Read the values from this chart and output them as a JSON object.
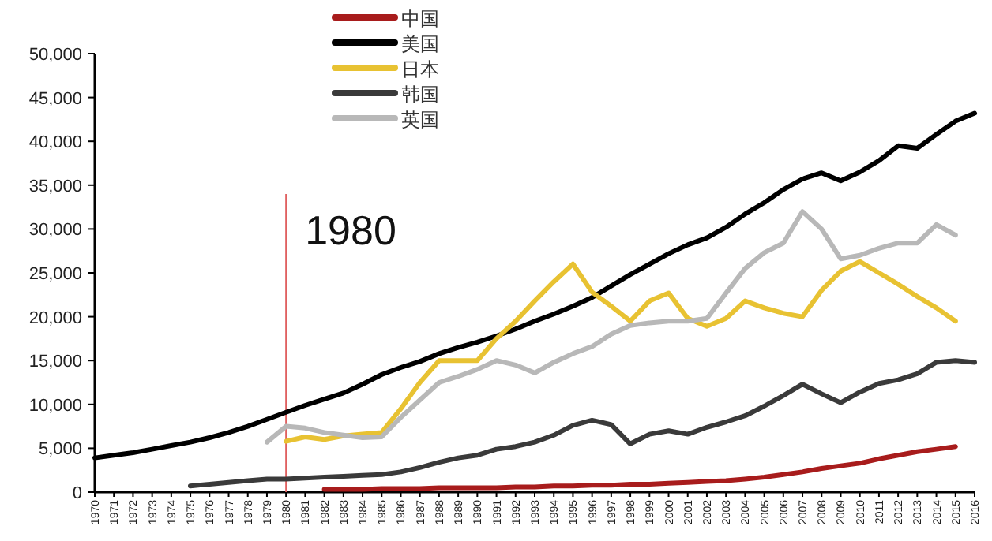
{
  "chart_data": {
    "type": "line",
    "x": [
      1970,
      1971,
      1972,
      1973,
      1974,
      1975,
      1976,
      1977,
      1978,
      1979,
      1980,
      1981,
      1982,
      1983,
      1984,
      1985,
      1986,
      1987,
      1988,
      1989,
      1990,
      1991,
      1992,
      1993,
      1994,
      1995,
      1996,
      1997,
      1998,
      1999,
      2000,
      2001,
      2002,
      2003,
      2004,
      2005,
      2006,
      2007,
      2008,
      2009,
      2010,
      2011,
      2012,
      2013,
      2014,
      2015,
      2016
    ],
    "series": [
      {
        "name": "中国",
        "color": "#a81c1c",
        "values": [
          null,
          null,
          null,
          null,
          null,
          null,
          null,
          null,
          null,
          null,
          null,
          null,
          300,
          300,
          300,
          400,
          400,
          400,
          500,
          500,
          500,
          500,
          600,
          600,
          700,
          700,
          800,
          800,
          900,
          900,
          1000,
          1100,
          1200,
          1300,
          1500,
          1700,
          2000,
          2300,
          2700,
          3000,
          3300,
          3800,
          4200,
          4600,
          4900,
          5200,
          null
        ]
      },
      {
        "name": "美国",
        "color": "#000000",
        "values": [
          3900,
          4200,
          4500,
          4900,
          5300,
          5700,
          6200,
          6800,
          7500,
          8300,
          9100,
          9900,
          10600,
          11300,
          12300,
          13400,
          14200,
          14900,
          15800,
          16500,
          17100,
          17800,
          18600,
          19500,
          20300,
          21200,
          22200,
          23500,
          24800,
          26000,
          27200,
          28200,
          29000,
          30200,
          31700,
          33000,
          34500,
          35700,
          36400,
          35500,
          36500,
          37800,
          39500,
          39200,
          40800,
          42300,
          43200
        ]
      },
      {
        "name": "日本",
        "color": "#e8c232",
        "values": [
          null,
          null,
          null,
          null,
          null,
          null,
          null,
          null,
          null,
          null,
          5800,
          6300,
          6000,
          6400,
          6600,
          6800,
          9500,
          12500,
          15000,
          15000,
          15000,
          17500,
          19500,
          21800,
          24000,
          26000,
          22800,
          21200,
          19500,
          21800,
          22700,
          19800,
          18900,
          19800,
          21800,
          21000,
          20400,
          20000,
          23000,
          25200,
          26300,
          25000,
          23700,
          22300,
          21000,
          19500,
          null
        ]
      },
      {
        "name": "韩国",
        "color": "#3a3a3a",
        "values": [
          null,
          null,
          null,
          null,
          null,
          700,
          900,
          1100,
          1300,
          1500,
          1500,
          1600,
          1700,
          1800,
          1900,
          2000,
          2300,
          2800,
          3400,
          3900,
          4200,
          4900,
          5200,
          5700,
          6500,
          7600,
          8200,
          7700,
          5500,
          6600,
          7000,
          6600,
          7400,
          8000,
          8700,
          9800,
          11000,
          12300,
          11200,
          10200,
          11400,
          12400,
          12800,
          13500,
          14800,
          15000,
          14800
        ]
      },
      {
        "name": "英国",
        "color": "#b8b8b8",
        "values": [
          null,
          null,
          null,
          null,
          null,
          null,
          null,
          null,
          null,
          5700,
          7500,
          7300,
          6800,
          6500,
          6200,
          6300,
          8500,
          10500,
          12500,
          13200,
          14000,
          15000,
          14500,
          13600,
          14800,
          15800,
          16600,
          18000,
          19000,
          19300,
          19500,
          19500,
          19800,
          22700,
          25500,
          27300,
          28400,
          32000,
          30000,
          26600,
          27000,
          27800,
          28400,
          28400,
          30500,
          29300,
          null
        ]
      }
    ],
    "xlim": [
      1970,
      2016
    ],
    "xticks": [
      1970,
      1971,
      1972,
      1973,
      1974,
      1975,
      1976,
      1977,
      1978,
      1979,
      1980,
      1981,
      1982,
      1983,
      1984,
      1985,
      1986,
      1987,
      1988,
      1989,
      1990,
      1991,
      1992,
      1993,
      1994,
      1995,
      1996,
      1997,
      1998,
      1999,
      2000,
      2001,
      2002,
      2003,
      2004,
      2005,
      2006,
      2007,
      2008,
      2009,
      2010,
      2011,
      2012,
      2013,
      2014,
      2015,
      2016
    ],
    "ylim": [
      0,
      50000
    ],
    "yticks": [
      0,
      {
        "value": 5000,
        "label": "5,000"
      },
      {
        "value": 10000,
        "label": "10,000"
      },
      {
        "value": 15000,
        "label": "15,000"
      },
      {
        "value": 20000,
        "label": "20,000"
      },
      {
        "value": 25000,
        "label": "25,000"
      },
      {
        "value": 30000,
        "label": "30,000"
      },
      {
        "value": 35000,
        "label": "35,000"
      },
      {
        "value": 40000,
        "label": "40,000"
      },
      {
        "value": 45000,
        "label": "45,000"
      },
      {
        "value": 50000,
        "label": "50,000"
      }
    ],
    "ref_lines": [
      {
        "axis": "x",
        "value": 1980,
        "label": "1980",
        "color": "#e06060"
      }
    ],
    "legend": "top"
  }
}
